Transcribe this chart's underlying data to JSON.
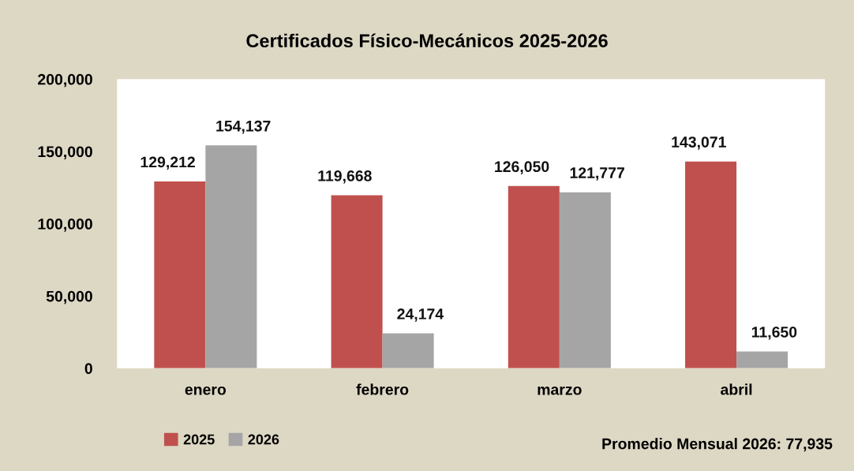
{
  "chart_data": {
    "type": "bar",
    "title": "Certificados Físico-Mecánicos 2025-2026",
    "categories": [
      "enero",
      "febrero",
      "marzo",
      "abril"
    ],
    "series": [
      {
        "name": "2025",
        "color": "#c0504d",
        "values": [
          129212,
          119668,
          126050,
          143071
        ],
        "value_labels": [
          "129,212",
          "119,668",
          "126,050",
          "143,071"
        ]
      },
      {
        "name": "2026",
        "color": "#a5a5a5",
        "values": [
          154137,
          24174,
          121777,
          11650
        ],
        "value_labels": [
          "154,137",
          "24,174",
          "121,777",
          "11,650"
        ]
      }
    ],
    "ylim": [
      0,
      200000
    ],
    "yticks": [
      {
        "value": 0,
        "label": "0"
      },
      {
        "value": 50000,
        "label": "50,000"
      },
      {
        "value": 100000,
        "label": "100,000"
      },
      {
        "value": 150000,
        "label": "150,000"
      },
      {
        "value": 200000,
        "label": "200,000"
      }
    ],
    "grid": false,
    "legend": "bottom left",
    "annotations": [
      "Promedio Mensual 2026: 77,935"
    ]
  }
}
